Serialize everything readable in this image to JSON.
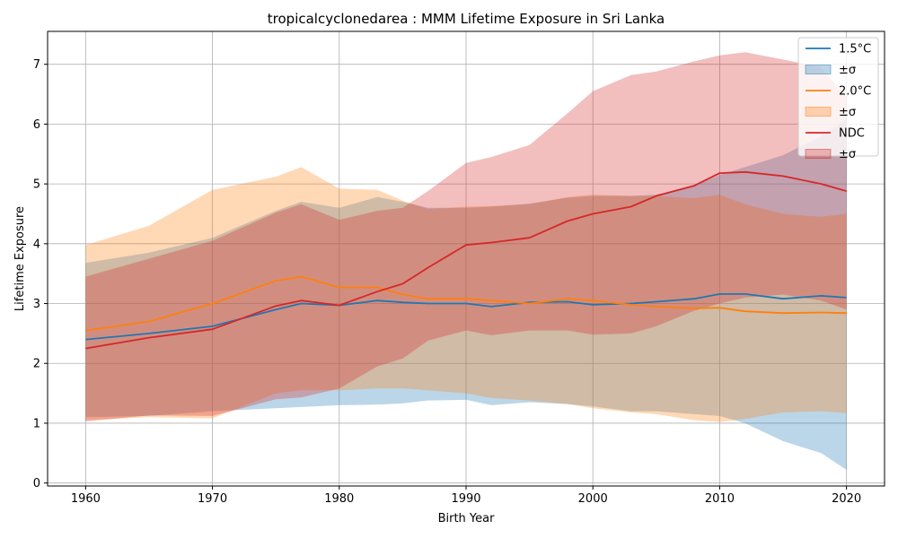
{
  "chart_data": {
    "type": "line",
    "title": "tropicalcyclonedarea : MMM Lifetime Exposure in Sri Lanka",
    "xlabel": "Birth Year",
    "ylabel": "Lifetime Exposure",
    "xlim": [
      1957,
      2023
    ],
    "ylim": [
      -0.05,
      7.55
    ],
    "xticks": [
      1960,
      1970,
      1980,
      1990,
      2000,
      2010,
      2020
    ],
    "yticks": [
      0,
      1,
      2,
      3,
      4,
      5,
      6,
      7
    ],
    "grid": true,
    "legend_position": "top-right",
    "x": [
      1960,
      1965,
      1970,
      1975,
      1977,
      1980,
      1983,
      1985,
      1987,
      1990,
      1992,
      1995,
      1998,
      2000,
      2003,
      2005,
      2008,
      2010,
      2012,
      2015,
      2018,
      2020
    ],
    "series": [
      {
        "name": "1.5°C",
        "color": "#1f77b4",
        "band_label": "±σ",
        "values": [
          2.4,
          2.5,
          2.62,
          2.9,
          3.0,
          2.97,
          3.05,
          3.02,
          3.0,
          3.0,
          2.95,
          3.02,
          3.03,
          2.98,
          3.0,
          3.03,
          3.08,
          3.16,
          3.16,
          3.08,
          3.13,
          3.1
        ],
        "lower": [
          1.1,
          1.12,
          1.2,
          1.25,
          1.27,
          1.3,
          1.31,
          1.33,
          1.38,
          1.39,
          1.3,
          1.35,
          1.32,
          1.28,
          1.2,
          1.2,
          1.15,
          1.12,
          1.0,
          0.7,
          0.5,
          0.22
        ],
        "upper": [
          3.68,
          3.85,
          4.1,
          4.55,
          4.7,
          4.6,
          4.78,
          4.7,
          4.6,
          4.6,
          4.62,
          4.67,
          4.77,
          4.8,
          4.8,
          4.82,
          4.97,
          5.15,
          5.28,
          5.48,
          5.8,
          6.08
        ]
      },
      {
        "name": "2.0°C",
        "color": "#ff7f0e",
        "band_label": "±σ",
        "values": [
          2.55,
          2.7,
          3.0,
          3.38,
          3.45,
          3.27,
          3.27,
          3.15,
          3.08,
          3.08,
          3.05,
          3.0,
          3.08,
          3.05,
          2.98,
          2.95,
          2.92,
          2.93,
          2.87,
          2.84,
          2.85,
          2.84
        ],
        "lower": [
          1.05,
          1.1,
          1.08,
          1.5,
          1.55,
          1.55,
          1.58,
          1.58,
          1.55,
          1.5,
          1.42,
          1.38,
          1.32,
          1.25,
          1.18,
          1.15,
          1.05,
          1.02,
          1.07,
          1.18,
          1.2,
          1.17
        ],
        "upper": [
          3.98,
          4.3,
          4.9,
          5.12,
          5.28,
          4.92,
          4.9,
          4.72,
          4.58,
          4.62,
          4.63,
          4.66,
          4.78,
          4.82,
          4.8,
          4.8,
          4.76,
          4.82,
          4.66,
          4.5,
          4.45,
          4.5
        ]
      },
      {
        "name": "NDC",
        "color": "#d62728",
        "band_label": "±σ",
        "values": [
          2.25,
          2.43,
          2.57,
          2.96,
          3.05,
          2.97,
          3.2,
          3.33,
          3.6,
          3.98,
          4.02,
          4.1,
          4.38,
          4.5,
          4.62,
          4.8,
          4.97,
          5.18,
          5.2,
          5.13,
          5.0,
          4.88
        ],
        "lower": [
          1.03,
          1.13,
          1.12,
          1.4,
          1.43,
          1.58,
          1.95,
          2.08,
          2.38,
          2.55,
          2.47,
          2.55,
          2.55,
          2.48,
          2.5,
          2.62,
          2.88,
          3.0,
          3.1,
          3.15,
          3.05,
          2.9
        ],
        "upper": [
          3.45,
          3.75,
          4.05,
          4.52,
          4.66,
          4.4,
          4.55,
          4.6,
          4.88,
          5.35,
          5.45,
          5.65,
          6.18,
          6.55,
          6.82,
          6.88,
          7.05,
          7.15,
          7.2,
          7.08,
          6.95,
          6.45
        ]
      }
    ]
  }
}
